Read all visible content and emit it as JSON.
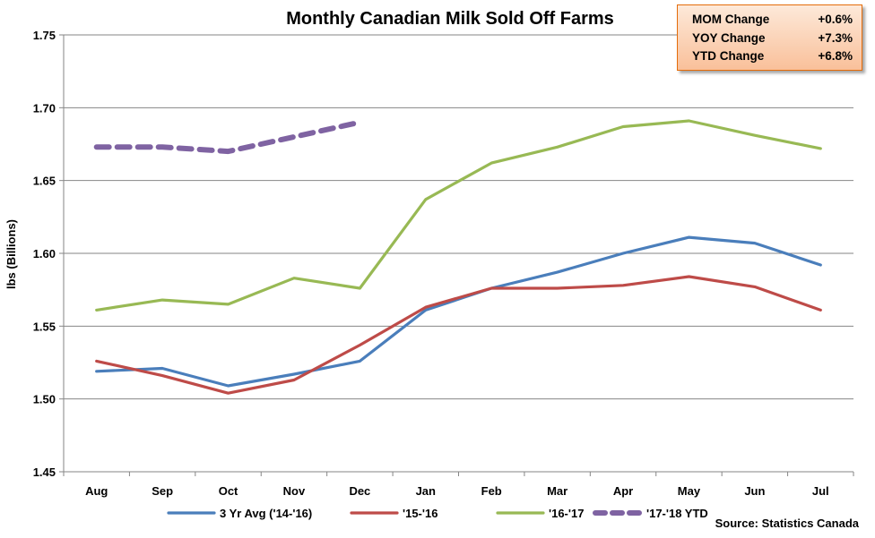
{
  "chart_data": {
    "type": "line",
    "title": "Monthly Canadian Milk Sold Off Farms",
    "ylabel": "lbs (Billions)",
    "xlabel": "",
    "categories": [
      "Aug",
      "Sep",
      "Oct",
      "Nov",
      "Dec",
      "Jan",
      "Feb",
      "Mar",
      "Apr",
      "May",
      "Jun",
      "Jul"
    ],
    "ylim": [
      1.45,
      1.75
    ],
    "yticks": [
      "1.45",
      "1.50",
      "1.55",
      "1.60",
      "1.65",
      "1.70",
      "1.75"
    ],
    "grid": true,
    "legend_position": "bottom",
    "series": [
      {
        "name": "3 Yr Avg ('14-'16)",
        "color": "#4a7ebb",
        "dashed": false,
        "values": [
          1.519,
          1.521,
          1.509,
          1.517,
          1.526,
          1.561,
          1.576,
          1.587,
          1.6,
          1.611,
          1.607,
          1.592
        ]
      },
      {
        "name": "'15-'16",
        "color": "#be4b48",
        "dashed": false,
        "values": [
          1.526,
          1.516,
          1.504,
          1.513,
          1.537,
          1.563,
          1.576,
          1.576,
          1.578,
          1.584,
          1.577,
          1.561
        ]
      },
      {
        "name": "'16-'17",
        "color": "#98b954",
        "dashed": false,
        "values": [
          1.561,
          1.568,
          1.565,
          1.583,
          1.576,
          1.637,
          1.662,
          1.673,
          1.687,
          1.691,
          1.681,
          1.672
        ]
      },
      {
        "name": "'17-'18 YTD",
        "color": "#7f63a2",
        "dashed": true,
        "values": [
          1.673,
          1.673,
          1.67,
          1.68,
          1.69,
          null,
          null,
          null,
          null,
          null,
          null,
          null
        ]
      }
    ],
    "source": "Source: Statistics Canada"
  },
  "summary": [
    {
      "label": "MOM Change",
      "value": "+0.6%"
    },
    {
      "label": "YOY Change",
      "value": "+7.3%"
    },
    {
      "label": "YTD Change",
      "value": "+6.8%"
    }
  ]
}
